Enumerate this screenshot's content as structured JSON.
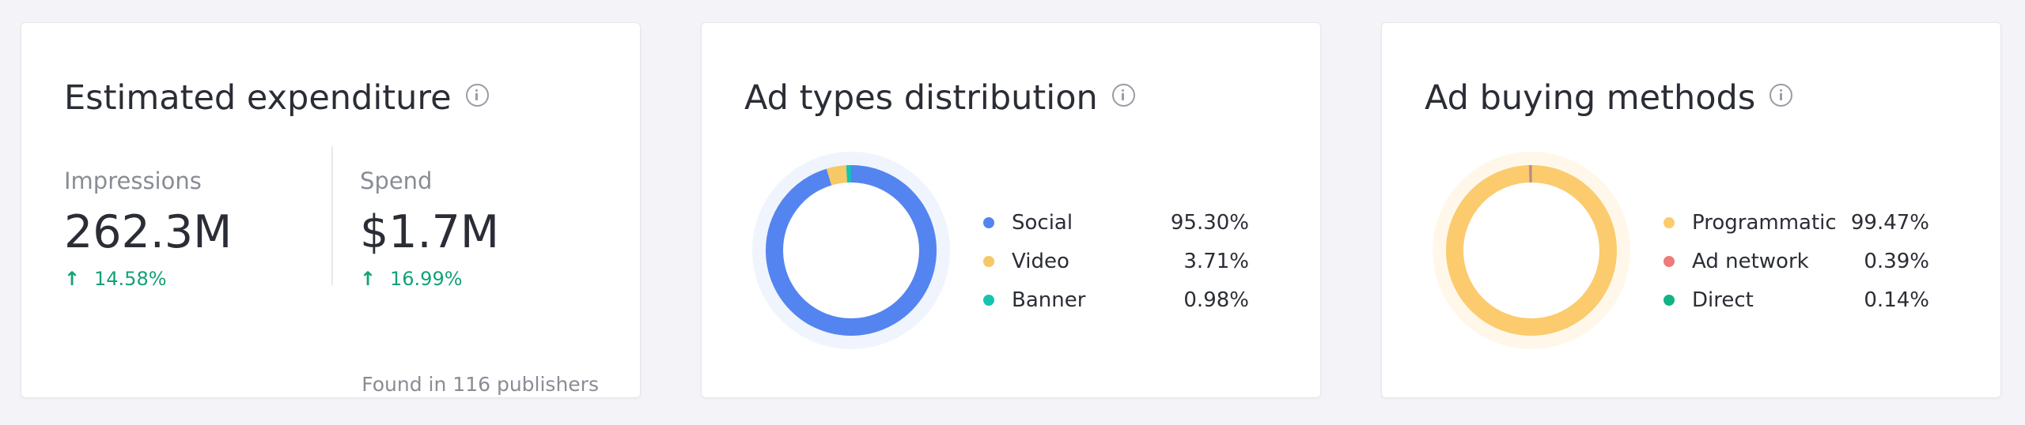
{
  "expenditure": {
    "title": "Estimated expenditure",
    "impressions": {
      "label": "Impressions",
      "value": "262.3M",
      "change": "14.58%"
    },
    "spend": {
      "label": "Spend",
      "value": "$1.7M",
      "change": "16.99%"
    },
    "found": "Found in 116 publishers",
    "positive_color": "#12a277"
  },
  "ad_types": {
    "title": "Ad types distribution",
    "items": [
      {
        "label": "Social",
        "value": "95.30%",
        "pct": 95.3,
        "color": "#5484f0"
      },
      {
        "label": "Video",
        "value": "3.71%",
        "pct": 3.71,
        "color": "#f6c866"
      },
      {
        "label": "Banner",
        "value": "0.98%",
        "pct": 0.98,
        "color": "#17c2b3"
      }
    ]
  },
  "buying_methods": {
    "title": "Ad buying methods",
    "items": [
      {
        "label": "Programmatic",
        "value": "99.47%",
        "pct": 99.47,
        "color": "#fbcb6d"
      },
      {
        "label": "Ad network",
        "value": "0.39%",
        "pct": 0.39,
        "color": "#ef7a7a"
      },
      {
        "label": "Direct",
        "value": "0.14%",
        "pct": 0.14,
        "color": "#11b384"
      }
    ]
  },
  "icons": {
    "info": "info-circle-icon",
    "trend": "arrow-up-icon"
  }
}
